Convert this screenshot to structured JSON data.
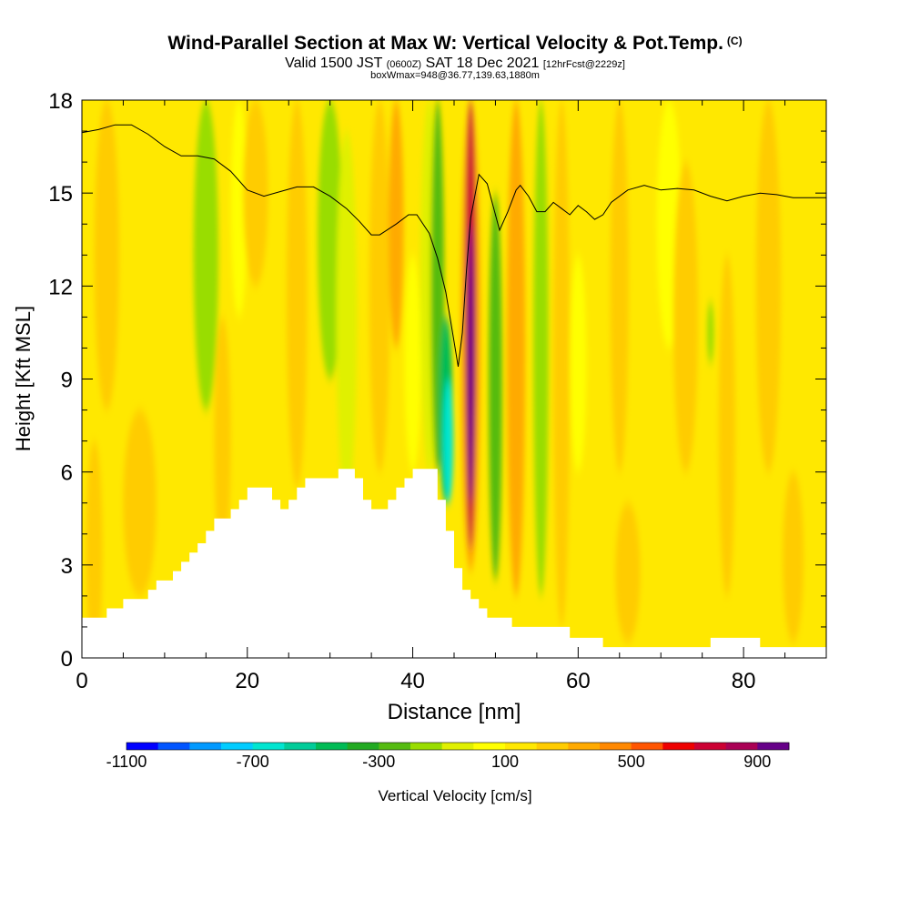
{
  "title": {
    "main": "Wind-Parallel Section at Max W: Vertical Velocity & Pot.Temp.",
    "copyright": "(C)",
    "valid_prefix": "Valid 1500 JST",
    "valid_utc": "(0600Z)",
    "valid_date": "SAT 18 Dec 2021",
    "forecast": "[12hrFcst@2229z]",
    "box": "boxWmax=948@36.77,139.63,1880m"
  },
  "chart_data": {
    "type": "heatmap",
    "xlabel": "Distance [nm]",
    "ylabel": "Height [Kft MSL]",
    "xlim": [
      0,
      90
    ],
    "ylim": [
      0,
      18
    ],
    "x_ticks": [
      0,
      20,
      40,
      60,
      80
    ],
    "y_ticks": [
      0,
      3,
      6,
      9,
      12,
      15,
      18
    ],
    "background_value": 100,
    "colorbar": {
      "label": "Vertical Velocity [cm/s]",
      "levels": [
        -1100,
        -1000,
        -900,
        -800,
        -700,
        -600,
        -500,
        -400,
        -300,
        -200,
        -100,
        0,
        100,
        200,
        300,
        400,
        500,
        600,
        700,
        800,
        900,
        1000
      ],
      "tick_labels": [
        "-1100",
        "-700",
        "-300",
        "100",
        "500",
        "900"
      ],
      "tick_values": [
        -1100,
        -700,
        -300,
        100,
        500,
        900
      ],
      "colors": [
        "#0000ff",
        "#0055ff",
        "#0099ff",
        "#00ccff",
        "#00e5d0",
        "#00cc99",
        "#00bb55",
        "#22aa22",
        "#55bb11",
        "#99dd00",
        "#e0f000",
        "#ffff00",
        "#ffe800",
        "#ffcc00",
        "#ffaa00",
        "#ff8800",
        "#ff5500",
        "#ee0000",
        "#cc0033",
        "#aa0055",
        "#660088"
      ]
    },
    "features": [
      {
        "x": 1.5,
        "y0": 0,
        "y1": 7,
        "w": 2,
        "value": 200
      },
      {
        "x": 3,
        "y0": 8,
        "y1": 18,
        "w": 3,
        "value": 200
      },
      {
        "x": 7,
        "y0": 2,
        "y1": 8,
        "w": 4,
        "value": 200
      },
      {
        "x": 15,
        "y0": 8,
        "y1": 18,
        "w": 3,
        "value": -200
      },
      {
        "x": 17,
        "y0": 3,
        "y1": 11,
        "w": 2,
        "value": 200
      },
      {
        "x": 19,
        "y0": 11,
        "y1": 18,
        "w": 2,
        "value": 0
      },
      {
        "x": 21,
        "y0": 12,
        "y1": 18,
        "w": 3,
        "value": 200
      },
      {
        "x": 26,
        "y0": 5.5,
        "y1": 18,
        "w": 2.5,
        "value": 200
      },
      {
        "x": 30,
        "y0": 9,
        "y1": 18,
        "w": 3,
        "value": -200
      },
      {
        "x": 32,
        "y0": 5,
        "y1": 17,
        "w": 2.5,
        "value": -100
      },
      {
        "x": 36,
        "y0": 6,
        "y1": 18,
        "w": 2.5,
        "value": 200
      },
      {
        "x": 38,
        "y0": 10,
        "y1": 18,
        "w": 1.8,
        "value": 300
      },
      {
        "x": 40,
        "y0": 6,
        "y1": 13,
        "w": 2,
        "value": 0
      },
      {
        "x": 42,
        "y0": 6,
        "y1": 18,
        "w": 2.2,
        "value": -100
      },
      {
        "x": 43,
        "y0": 6,
        "y1": 18,
        "w": 1.6,
        "value": -300
      },
      {
        "x": 44,
        "y0": 5,
        "y1": 11,
        "w": 1.6,
        "value": -500
      },
      {
        "x": 44.3,
        "y0": 5,
        "y1": 9,
        "w": 1.2,
        "value": -700
      },
      {
        "x": 47,
        "y0": 2.8,
        "y1": 18,
        "w": 2.4,
        "value": 300
      },
      {
        "x": 47,
        "y0": 3.5,
        "y1": 18,
        "w": 1.4,
        "value": 700
      },
      {
        "x": 47,
        "y0": 5,
        "y1": 14,
        "w": 0.8,
        "value": 900
      },
      {
        "x": 50,
        "y0": 2.5,
        "y1": 15,
        "w": 1.6,
        "value": -300
      },
      {
        "x": 52.5,
        "y0": 2,
        "y1": 18,
        "w": 2.2,
        "value": 300
      },
      {
        "x": 55.5,
        "y0": 2,
        "y1": 18,
        "w": 1.8,
        "value": -200
      },
      {
        "x": 58,
        "y0": 1,
        "y1": 18,
        "w": 2,
        "value": 200
      },
      {
        "x": 60,
        "y0": 6,
        "y1": 13,
        "w": 2,
        "value": 0
      },
      {
        "x": 65,
        "y0": 6,
        "y1": 18,
        "w": 2.2,
        "value": 200
      },
      {
        "x": 66,
        "y0": 0.5,
        "y1": 5,
        "w": 3,
        "value": 200
      },
      {
        "x": 71,
        "y0": 10,
        "y1": 18,
        "w": 3,
        "value": 0
      },
      {
        "x": 73,
        "y0": 6,
        "y1": 16,
        "w": 3,
        "value": 200
      },
      {
        "x": 76,
        "y0": 9.5,
        "y1": 11.5,
        "w": 0.8,
        "value": -200
      },
      {
        "x": 78,
        "y0": 2,
        "y1": 13,
        "w": 2,
        "value": 200
      },
      {
        "x": 83,
        "y0": 6,
        "y1": 18,
        "w": 3,
        "value": 200
      },
      {
        "x": 86,
        "y0": 0.5,
        "y1": 6,
        "w": 2.5,
        "value": 200
      }
    ],
    "terrain": [
      [
        0,
        1.3
      ],
      [
        3,
        1.3
      ],
      [
        3,
        1.6
      ],
      [
        5,
        1.6
      ],
      [
        5,
        1.9
      ],
      [
        8,
        1.9
      ],
      [
        8,
        2.2
      ],
      [
        9,
        2.2
      ],
      [
        9,
        2.5
      ],
      [
        11,
        2.5
      ],
      [
        11,
        2.8
      ],
      [
        12,
        2.8
      ],
      [
        12,
        3.1
      ],
      [
        13,
        3.1
      ],
      [
        13,
        3.4
      ],
      [
        14,
        3.4
      ],
      [
        14,
        3.7
      ],
      [
        15,
        3.7
      ],
      [
        15,
        4.1
      ],
      [
        16,
        4.1
      ],
      [
        16,
        4.5
      ],
      [
        18,
        4.5
      ],
      [
        18,
        4.8
      ],
      [
        19,
        4.8
      ],
      [
        19,
        5.1
      ],
      [
        20,
        5.1
      ],
      [
        20,
        5.5
      ],
      [
        23,
        5.5
      ],
      [
        23,
        5.1
      ],
      [
        24,
        5.1
      ],
      [
        24,
        4.8
      ],
      [
        25,
        4.8
      ],
      [
        25,
        5.1
      ],
      [
        26,
        5.1
      ],
      [
        26,
        5.5
      ],
      [
        27,
        5.5
      ],
      [
        27,
        5.8
      ],
      [
        31,
        5.8
      ],
      [
        31,
        6.1
      ],
      [
        33,
        6.1
      ],
      [
        33,
        5.8
      ],
      [
        34,
        5.8
      ],
      [
        34,
        5.1
      ],
      [
        35,
        5.1
      ],
      [
        35,
        4.8
      ],
      [
        37,
        4.8
      ],
      [
        37,
        5.1
      ],
      [
        38,
        5.1
      ],
      [
        38,
        5.5
      ],
      [
        39,
        5.5
      ],
      [
        39,
        5.8
      ],
      [
        40,
        5.8
      ],
      [
        40,
        6.1
      ],
      [
        43,
        6.1
      ],
      [
        43,
        5.1
      ],
      [
        44,
        5.1
      ],
      [
        44,
        4.1
      ],
      [
        45,
        4.1
      ],
      [
        45,
        2.9
      ],
      [
        46,
        2.9
      ],
      [
        46,
        2.2
      ],
      [
        47,
        2.2
      ],
      [
        47,
        1.9
      ],
      [
        48,
        1.9
      ],
      [
        48,
        1.6
      ],
      [
        49,
        1.6
      ],
      [
        49,
        1.3
      ],
      [
        52,
        1.3
      ],
      [
        52,
        1.0
      ],
      [
        59,
        1.0
      ],
      [
        59,
        0.65
      ],
      [
        63,
        0.65
      ],
      [
        63,
        0.35
      ],
      [
        76,
        0.35
      ],
      [
        76,
        0.65
      ],
      [
        82,
        0.65
      ],
      [
        82,
        0.35
      ],
      [
        90,
        0.35
      ]
    ],
    "theta_line": [
      [
        0,
        16.95
      ],
      [
        2,
        17.05
      ],
      [
        4,
        17.2
      ],
      [
        6,
        17.2
      ],
      [
        8,
        16.9
      ],
      [
        10,
        16.5
      ],
      [
        12,
        16.2
      ],
      [
        14,
        16.2
      ],
      [
        16,
        16.1
      ],
      [
        18,
        15.7
      ],
      [
        20,
        15.1
      ],
      [
        22,
        14.9
      ],
      [
        24,
        15.05
      ],
      [
        26,
        15.2
      ],
      [
        28,
        15.2
      ],
      [
        30,
        14.9
      ],
      [
        32,
        14.5
      ],
      [
        33.5,
        14.1
      ],
      [
        35,
        13.65
      ],
      [
        36,
        13.65
      ],
      [
        38,
        14.0
      ],
      [
        39.5,
        14.3
      ],
      [
        40.5,
        14.3
      ],
      [
        42,
        13.7
      ],
      [
        43,
        12.9
      ],
      [
        44,
        11.8
      ],
      [
        45,
        10.2
      ],
      [
        45.5,
        9.4
      ],
      [
        46,
        10.5
      ],
      [
        46.5,
        12.5
      ],
      [
        47,
        14.2
      ],
      [
        48,
        15.6
      ],
      [
        49,
        15.3
      ],
      [
        49.5,
        14.8
      ],
      [
        50.5,
        13.8
      ],
      [
        51.5,
        14.4
      ],
      [
        52.5,
        15.1
      ],
      [
        53,
        15.25
      ],
      [
        54,
        14.9
      ],
      [
        55,
        14.4
      ],
      [
        56,
        14.4
      ],
      [
        57,
        14.7
      ],
      [
        58,
        14.5
      ],
      [
        59,
        14.3
      ],
      [
        60,
        14.6
      ],
      [
        61,
        14.4
      ],
      [
        62,
        14.15
      ],
      [
        63,
        14.3
      ],
      [
        64,
        14.7
      ],
      [
        66,
        15.1
      ],
      [
        68,
        15.25
      ],
      [
        70,
        15.1
      ],
      [
        72,
        15.15
      ],
      [
        74,
        15.1
      ],
      [
        76,
        14.9
      ],
      [
        78,
        14.75
      ],
      [
        80,
        14.9
      ],
      [
        82,
        15.0
      ],
      [
        84,
        14.95
      ],
      [
        86,
        14.85
      ],
      [
        88,
        14.85
      ],
      [
        90,
        14.85
      ]
    ],
    "grid": false
  }
}
